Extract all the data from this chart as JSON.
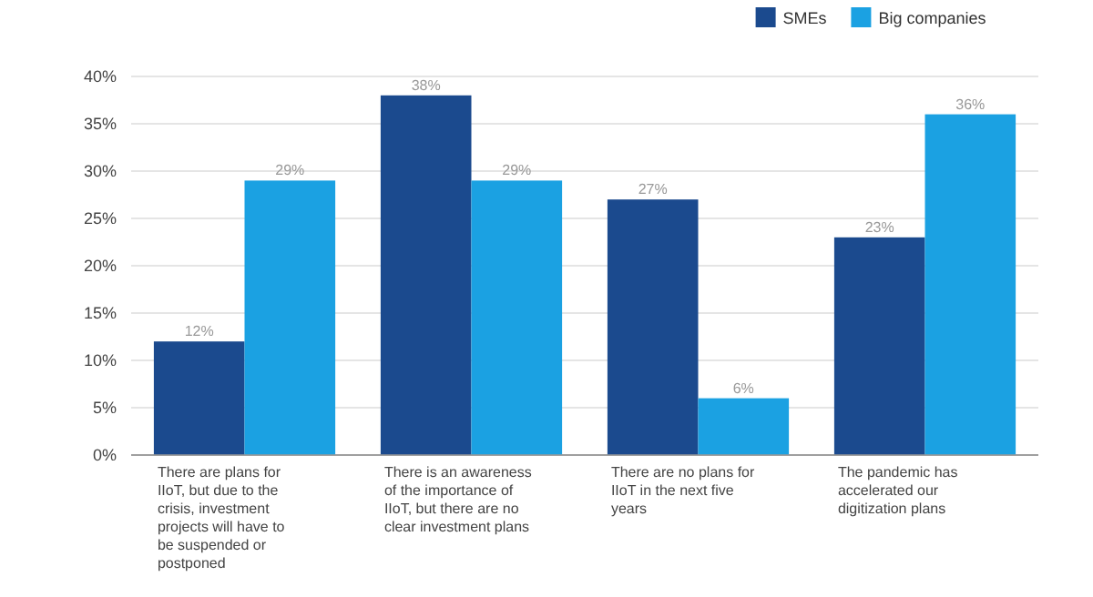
{
  "chart_data": {
    "type": "bar",
    "categories": [
      "There are plans for IIoT, but due to the crisis, investment projects will have to be suspended or postponed",
      "There is an awareness of the importance of IIoT, but there are no clear investment plans",
      "There are no plans for IIoT in the next five years",
      "The pandemic has accelerated our digitization plans"
    ],
    "series": [
      {
        "name": "SMEs",
        "color": "#1b4a8e",
        "values": [
          12,
          38,
          27,
          23
        ]
      },
      {
        "name": "Big companies",
        "color": "#1ba1e2",
        "values": [
          29,
          29,
          6,
          36
        ]
      }
    ],
    "ylim": [
      0,
      40
    ],
    "yticks": [
      {
        "value": 0,
        "label": "0%"
      },
      {
        "value": 5,
        "label": "5%"
      },
      {
        "value": 10,
        "label": "10%"
      },
      {
        "value": 15,
        "label": "15%"
      },
      {
        "value": 20,
        "label": "20%"
      },
      {
        "value": 25,
        "label": "25%"
      },
      {
        "value": 30,
        "label": "30%"
      },
      {
        "value": 35,
        "label": "35%"
      },
      {
        "value": 40,
        "label": "40%"
      }
    ],
    "value_labels": [
      [
        "12%",
        "38%",
        "27%",
        "23%"
      ],
      [
        "29%",
        "29%",
        "6%",
        "36%"
      ]
    ],
    "grid": "y",
    "legend": "top right"
  }
}
